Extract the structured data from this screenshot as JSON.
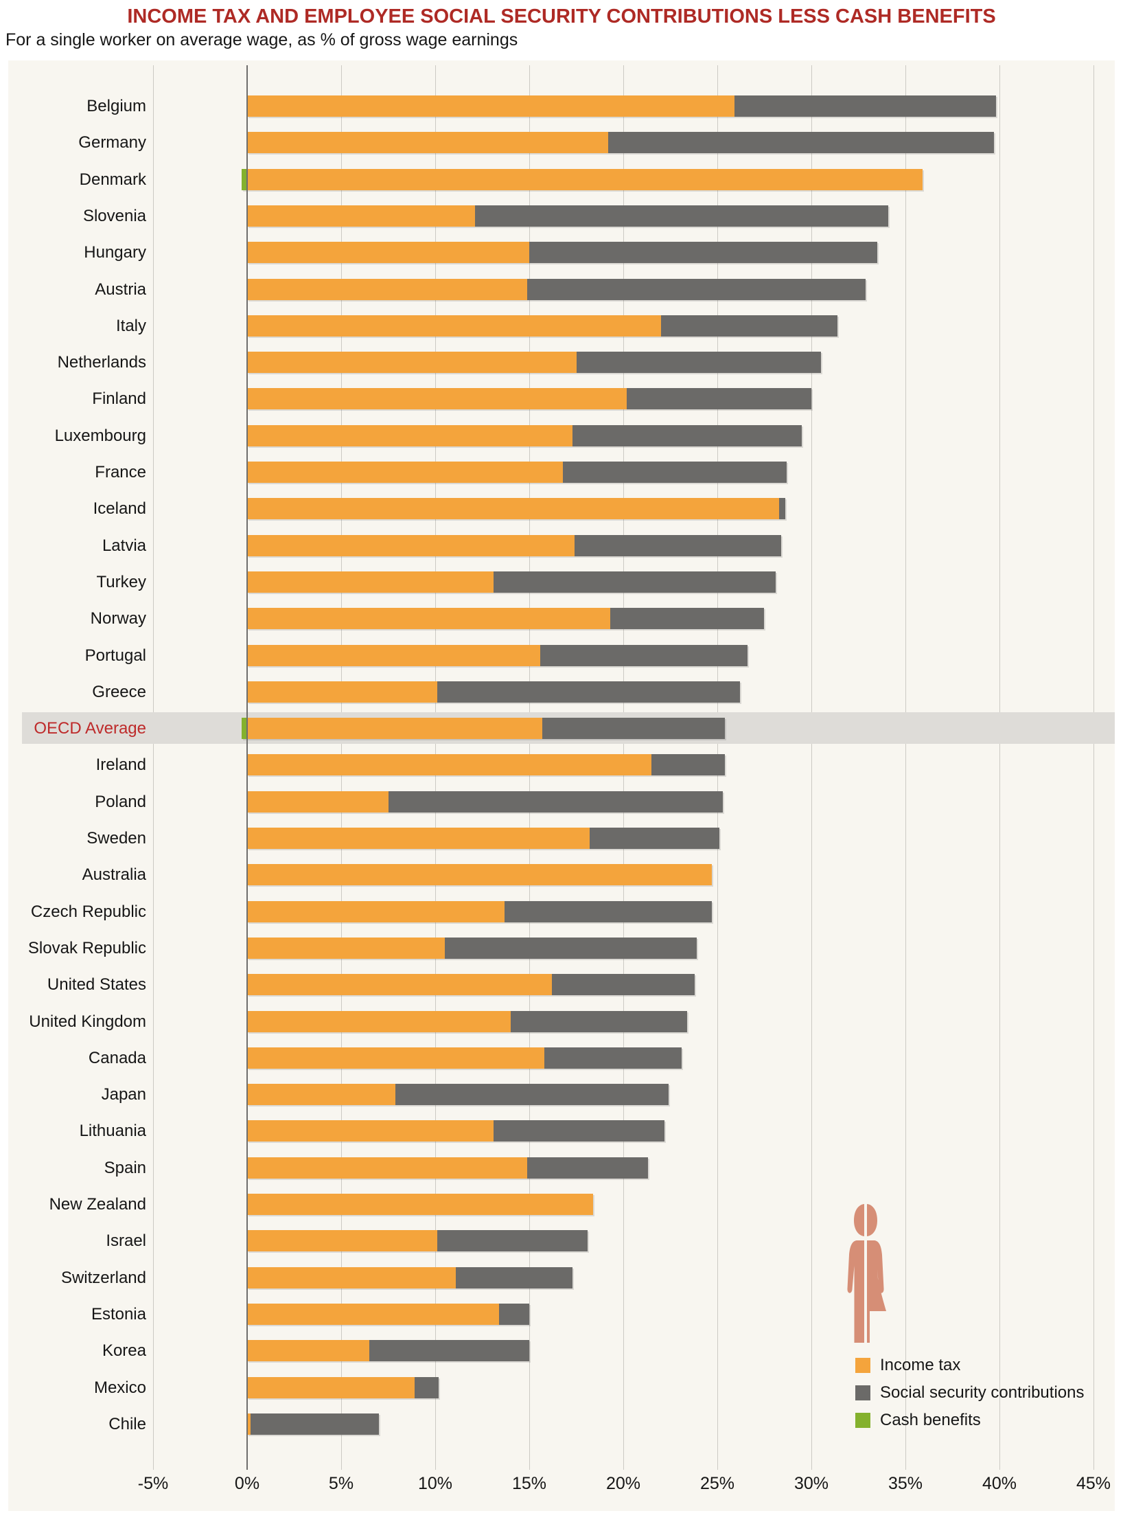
{
  "title": "INCOME TAX AND EMPLOYEE SOCIAL SECURITY CONTRIBUTIONS LESS CASH BENEFITS",
  "subtitle": "For a single worker on average wage, as % of gross wage earnings",
  "colors": {
    "income_tax": "#F4A43C",
    "social_security": "#6B6A68",
    "cash_benefits": "#84B12D",
    "title_red": "#AE2A25",
    "oecd_label_red": "#BE2B2B",
    "highlight_band": "#DEDCD8",
    "panel_bg": "#F8F6F0",
    "gridline": "#CCCAC4",
    "zero_line": "#6F6E6C",
    "person": "#D68E76"
  },
  "chart_data": {
    "type": "bar",
    "orientation": "horizontal",
    "stacked": true,
    "unit": "% of gross wage earnings",
    "axis": {
      "min": -5,
      "max": 45,
      "step": 5,
      "tick_labels": [
        "-5%",
        "0%",
        "5%",
        "10%",
        "15%",
        "20%",
        "25%",
        "30%",
        "35%",
        "40%",
        "45%"
      ],
      "grid": true
    },
    "legend": [
      {
        "key": "income_tax",
        "label": "Income tax"
      },
      {
        "key": "social_security",
        "label": "Social security contributions"
      },
      {
        "key": "cash_benefits",
        "label": "Cash benefits"
      }
    ],
    "legend_position": "bottom-right",
    "highlight_row": "OECD Average",
    "rows": [
      {
        "country": "Belgium",
        "income_tax": 25.9,
        "social_security": 13.9,
        "cash_benefits": 0
      },
      {
        "country": "Germany",
        "income_tax": 19.2,
        "social_security": 20.5,
        "cash_benefits": 0
      },
      {
        "country": "Denmark",
        "income_tax": 35.9,
        "social_security": 0,
        "cash_benefits": 0.3
      },
      {
        "country": "Slovenia",
        "income_tax": 12.1,
        "social_security": 22.0,
        "cash_benefits": 0
      },
      {
        "country": "Hungary",
        "income_tax": 15.0,
        "social_security": 18.5,
        "cash_benefits": 0
      },
      {
        "country": "Austria",
        "income_tax": 14.9,
        "social_security": 18.0,
        "cash_benefits": 0
      },
      {
        "country": "Italy",
        "income_tax": 22.0,
        "social_security": 9.4,
        "cash_benefits": 0
      },
      {
        "country": "Netherlands",
        "income_tax": 17.5,
        "social_security": 13.0,
        "cash_benefits": 0
      },
      {
        "country": "Finland",
        "income_tax": 20.2,
        "social_security": 9.8,
        "cash_benefits": 0
      },
      {
        "country": "Luxembourg",
        "income_tax": 17.3,
        "social_security": 12.2,
        "cash_benefits": 0
      },
      {
        "country": "France",
        "income_tax": 16.8,
        "social_security": 11.9,
        "cash_benefits": 0
      },
      {
        "country": "Iceland",
        "income_tax": 28.3,
        "social_security": 0.3,
        "cash_benefits": 0
      },
      {
        "country": "Latvia",
        "income_tax": 17.4,
        "social_security": 11.0,
        "cash_benefits": 0
      },
      {
        "country": "Turkey",
        "income_tax": 13.1,
        "social_security": 15.0,
        "cash_benefits": 0
      },
      {
        "country": "Norway",
        "income_tax": 19.3,
        "social_security": 8.2,
        "cash_benefits": 0
      },
      {
        "country": "Portugal",
        "income_tax": 15.6,
        "social_security": 11.0,
        "cash_benefits": 0
      },
      {
        "country": "Greece",
        "income_tax": 10.1,
        "social_security": 16.1,
        "cash_benefits": 0
      },
      {
        "country": "OECD Average",
        "income_tax": 15.7,
        "social_security": 9.7,
        "cash_benefits": 0.3
      },
      {
        "country": "Ireland",
        "income_tax": 21.5,
        "social_security": 3.9,
        "cash_benefits": 0
      },
      {
        "country": "Poland",
        "income_tax": 7.5,
        "social_security": 17.8,
        "cash_benefits": 0
      },
      {
        "country": "Sweden",
        "income_tax": 18.2,
        "social_security": 6.9,
        "cash_benefits": 0
      },
      {
        "country": "Australia",
        "income_tax": 24.7,
        "social_security": 0,
        "cash_benefits": 0
      },
      {
        "country": "Czech Republic",
        "income_tax": 13.7,
        "social_security": 11.0,
        "cash_benefits": 0
      },
      {
        "country": "Slovak Republic",
        "income_tax": 10.5,
        "social_security": 13.4,
        "cash_benefits": 0
      },
      {
        "country": "United States",
        "income_tax": 16.2,
        "social_security": 7.6,
        "cash_benefits": 0
      },
      {
        "country": "United Kingdom",
        "income_tax": 14.0,
        "social_security": 9.4,
        "cash_benefits": 0
      },
      {
        "country": "Canada",
        "income_tax": 15.8,
        "social_security": 7.3,
        "cash_benefits": 0
      },
      {
        "country": "Japan",
        "income_tax": 7.9,
        "social_security": 14.5,
        "cash_benefits": 0
      },
      {
        "country": "Lithuania",
        "income_tax": 13.1,
        "social_security": 9.1,
        "cash_benefits": 0
      },
      {
        "country": "Spain",
        "income_tax": 14.9,
        "social_security": 6.4,
        "cash_benefits": 0
      },
      {
        "country": "New Zealand",
        "income_tax": 18.4,
        "social_security": 0,
        "cash_benefits": 0
      },
      {
        "country": "Israel",
        "income_tax": 10.1,
        "social_security": 8.0,
        "cash_benefits": 0
      },
      {
        "country": "Switzerland",
        "income_tax": 11.1,
        "social_security": 6.2,
        "cash_benefits": 0
      },
      {
        "country": "Estonia",
        "income_tax": 13.4,
        "social_security": 1.6,
        "cash_benefits": 0
      },
      {
        "country": "Korea",
        "income_tax": 6.5,
        "social_security": 8.5,
        "cash_benefits": 0
      },
      {
        "country": "Mexico",
        "income_tax": 8.9,
        "social_security": 1.3,
        "cash_benefits": 0
      },
      {
        "country": "Chile",
        "income_tax": 0.2,
        "social_security": 6.8,
        "cash_benefits": 0
      }
    ]
  }
}
